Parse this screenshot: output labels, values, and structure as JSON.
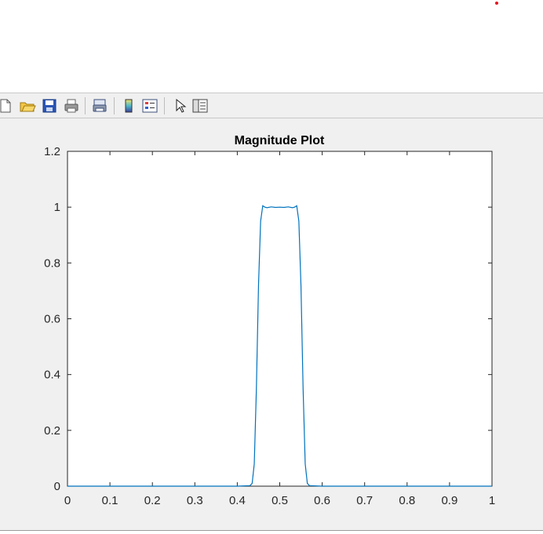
{
  "toolbar": {
    "buttons": [
      {
        "name": "new-figure-icon"
      },
      {
        "name": "open-file-icon"
      },
      {
        "name": "save-icon"
      },
      {
        "name": "print-icon"
      },
      {
        "name": "link-plot-icon"
      },
      {
        "name": "insert-colorbar-icon"
      },
      {
        "name": "insert-legend-icon"
      },
      {
        "name": "edit-plot-pointer-icon"
      },
      {
        "name": "property-inspector-icon"
      }
    ]
  },
  "chart_data": {
    "type": "line",
    "title": "Magnitude Plot",
    "xlabel": "",
    "ylabel": "",
    "xlim": [
      0,
      1
    ],
    "ylim": [
      0,
      1.2
    ],
    "x_ticks": [
      0,
      0.1,
      0.2,
      0.3,
      0.4,
      0.5,
      0.6,
      0.7,
      0.8,
      0.9,
      1
    ],
    "x_tick_labels": [
      "0",
      "0.1",
      "0.2",
      "0.3",
      "0.4",
      "0.5",
      "0.6",
      "0.7",
      "0.8",
      "0.9",
      "1"
    ],
    "y_ticks": [
      0,
      0.2,
      0.4,
      0.6,
      0.8,
      1,
      1.2
    ],
    "y_tick_labels": [
      "0",
      "0.2",
      "0.4",
      "0.6",
      "0.8",
      "1",
      "1.2"
    ],
    "grid": false,
    "line_color": "#0072bd",
    "series": [
      {
        "x": [
          0,
          0.1,
          0.2,
          0.3,
          0.4,
          0.43,
          0.435,
          0.44,
          0.445,
          0.45,
          0.455,
          0.46,
          0.465,
          0.47,
          0.48,
          0.49,
          0.5,
          0.51,
          0.52,
          0.53,
          0.535,
          0.54,
          0.545,
          0.55,
          0.555,
          0.56,
          0.565,
          0.57,
          0.6,
          0.7,
          0.8,
          0.9,
          1
        ],
        "y": [
          0,
          0,
          0,
          0,
          0,
          0.002,
          0.01,
          0.08,
          0.35,
          0.72,
          0.95,
          1.005,
          1.0,
          0.998,
          1.001,
          0.999,
          1.0,
          0.999,
          1.001,
          0.998,
          1.0,
          1.005,
          0.95,
          0.72,
          0.35,
          0.08,
          0.01,
          0.002,
          0,
          0,
          0,
          0,
          0
        ]
      }
    ]
  }
}
